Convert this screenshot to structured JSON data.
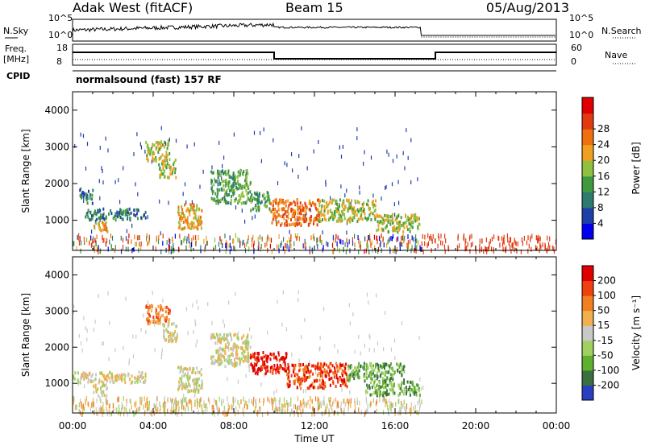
{
  "header": {
    "title": "Adak West (fitACF)",
    "beam": "Beam 15",
    "date": "05/Aug/2013"
  },
  "status_panel": {
    "left_labels": {
      "n_sky": "N.Sky",
      "freq": "Freq.",
      "freq_unit": "[MHz]",
      "cpid": "CPID"
    },
    "right_labels": {
      "n_search": "N.Search",
      "nave": "Nave"
    },
    "noise_ticks": {
      "top": "10^5",
      "bottom": "10^0"
    },
    "freq_ticks": {
      "top": "18",
      "bottom": "8"
    },
    "nave_ticks": {
      "top": "60",
      "bottom": "0"
    },
    "cpid_text": "normalsound (fast) 157 RF"
  },
  "chart_data": [
    {
      "type": "heatmap",
      "panel": "power",
      "ylabel": "Slant Range [km]",
      "ylim": [
        180,
        4500
      ],
      "yticks": [
        "1000",
        "2000",
        "3000",
        "4000"
      ],
      "xlim": [
        0,
        24
      ],
      "colorbar": {
        "label": "Power [dB]",
        "ticks": [
          "4",
          "8",
          "12",
          "16",
          "20",
          "24",
          "28"
        ],
        "colors": [
          "#0000ee",
          "#1f3fa8",
          "#2f7a6e",
          "#3f9a3f",
          "#8fc03f",
          "#f0a020",
          "#f07010",
          "#e03a10",
          "#e00000"
        ]
      },
      "regions": [
        {
          "t": [
            0.6,
            3.6
          ],
          "r": [
            1050,
            1350
          ],
          "level": 2
        },
        {
          "t": [
            1.0,
            1.7
          ],
          "r": [
            700,
            1000
          ],
          "level": 5
        },
        {
          "t": [
            0.3,
            1.0
          ],
          "r": [
            1500,
            1900
          ],
          "level": 2
        },
        {
          "t": [
            3.6,
            4.8
          ],
          "r": [
            2650,
            3200
          ],
          "level": 4
        },
        {
          "t": [
            4.2,
            5.1
          ],
          "r": [
            2200,
            2700
          ],
          "level": 4
        },
        {
          "t": [
            5.2,
            6.4
          ],
          "r": [
            800,
            1500
          ],
          "level": 5
        },
        {
          "t": [
            6.8,
            8.8
          ],
          "r": [
            1500,
            2400
          ],
          "level": 3
        },
        {
          "t": [
            8.8,
            9.8
          ],
          "r": [
            1300,
            1800
          ],
          "level": 3
        },
        {
          "t": [
            9.8,
            12.2
          ],
          "r": [
            900,
            1600
          ],
          "level": 6
        },
        {
          "t": [
            12.2,
            15.0
          ],
          "r": [
            1000,
            1600
          ],
          "level": 4
        },
        {
          "t": [
            15.0,
            17.2
          ],
          "r": [
            700,
            1200
          ],
          "level": 4
        }
      ],
      "ground_scatter": {
        "t": [
          0,
          24
        ],
        "r": [
          200,
          700
        ]
      }
    },
    {
      "type": "heatmap",
      "panel": "velocity",
      "ylabel": "Slant Range [km]",
      "ylim": [
        180,
        4500
      ],
      "yticks": [
        "1000",
        "2000",
        "3000",
        "4000"
      ],
      "xlim": [
        0,
        24
      ],
      "xticks": [
        "00:00",
        "04:00",
        "08:00",
        "12:00",
        "16:00",
        "20:00",
        "00:00"
      ],
      "xlabel": "Time UT",
      "colorbar": {
        "label": "Velocity [m s⁻¹]",
        "ticks": [
          "200",
          "100",
          "50",
          "15",
          "-15",
          "-50",
          "-100",
          "-200"
        ],
        "colors": [
          "#2a3fc0",
          "#3a7040",
          "#60b030",
          "#a0d060",
          "#c8c8c8",
          "#f0b050",
          "#f08020",
          "#f04010",
          "#e00000"
        ]
      },
      "regions": [
        {
          "t": [
            0.0,
            3.6
          ],
          "r": [
            1050,
            1350
          ],
          "level": 4
        },
        {
          "t": [
            1.0,
            1.7
          ],
          "r": [
            700,
            1000
          ],
          "level": 4
        },
        {
          "t": [
            3.6,
            4.8
          ],
          "r": [
            2650,
            3200
          ],
          "level": 6
        },
        {
          "t": [
            4.4,
            5.2
          ],
          "r": [
            2200,
            2700
          ],
          "level": 4
        },
        {
          "t": [
            5.2,
            6.4
          ],
          "r": [
            800,
            1500
          ],
          "level": 4
        },
        {
          "t": [
            6.8,
            8.8
          ],
          "r": [
            1500,
            2400
          ],
          "level": 4
        },
        {
          "t": [
            8.8,
            10.6
          ],
          "r": [
            1300,
            1900
          ],
          "level": 8
        },
        {
          "t": [
            10.6,
            13.6
          ],
          "r": [
            900,
            1600
          ],
          "level": 7
        },
        {
          "t": [
            13.6,
            16.5
          ],
          "r": [
            1100,
            1600
          ],
          "level": 2
        },
        {
          "t": [
            14.5,
            17.2
          ],
          "r": [
            700,
            1100
          ],
          "level": 2
        }
      ]
    }
  ]
}
